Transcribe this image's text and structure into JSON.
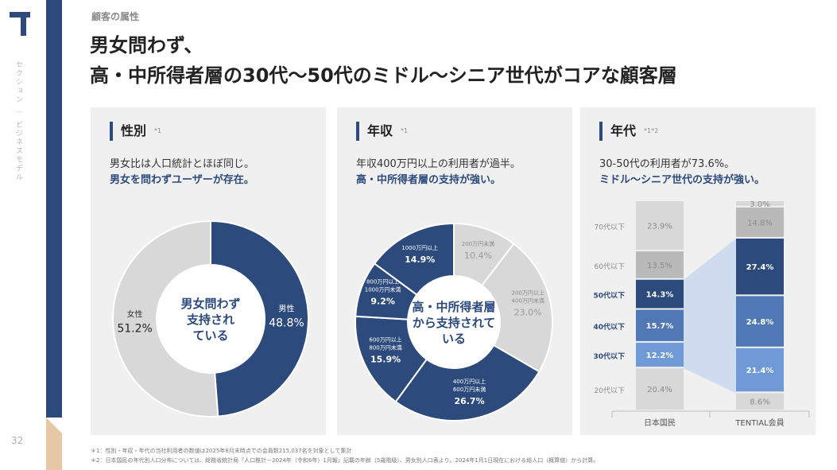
{
  "sidebar": {
    "section_label": "セクション ｜ ビジネスモデル",
    "page_number": "32"
  },
  "header": {
    "eyebrow": "顧客の属性",
    "title_line1": "男女問わず、",
    "title_line2": "高・中所得者層の30代〜50代のミドル〜シニア世代がコアな顧客層"
  },
  "colors": {
    "navy": "#2c4a7c",
    "blue": "#4f78b5",
    "light_blue": "#6f9ad6",
    "gray": "#d9d8d9",
    "mid_gray": "#b9b9b9",
    "tan": "#e6c7a6"
  },
  "panels": {
    "gender": {
      "title": "性別",
      "note": "*1",
      "line1": "男女比は人口統計とほぼ同じ。",
      "line2": "男女を問わずユーザーが存在。"
    },
    "income": {
      "title": "年収",
      "note": "*1",
      "line1": "年収400万円以上の利用者が過半。",
      "line2": "高・中所得者層の支持が強い。"
    },
    "age": {
      "title": "年代",
      "note": "*1*2",
      "line1": "30-50代の利用者が73.6%。",
      "line2": "ミドル〜シニア世代の支持が強い。"
    }
  },
  "chart_data": [
    {
      "type": "pie",
      "name": "gender",
      "center_label": [
        "男女問わず",
        "支持され",
        "ている"
      ],
      "slices": [
        {
          "label": "男性",
          "value": 48.8,
          "display": "48.8%",
          "color": "#2c4a7c"
        },
        {
          "label": "女性",
          "value": 51.2,
          "display": "51.2%",
          "color": "#d9d8d9"
        }
      ]
    },
    {
      "type": "pie",
      "name": "income",
      "center_label": [
        "高・中所得者層",
        "から支持されて",
        "いる"
      ],
      "slices": [
        {
          "label": [
            "200万円未満"
          ],
          "value": 10.4,
          "display": "10.4%",
          "color": "#d9d8d9"
        },
        {
          "label": [
            "200万円以上",
            "400万円未満"
          ],
          "value": 23.0,
          "display": "23.0%",
          "color": "#d9d8d9"
        },
        {
          "label": [
            "400万円以上",
            "600万円未満"
          ],
          "value": 26.7,
          "display": "26.7%",
          "color": "#2c4a7c"
        },
        {
          "label": [
            "600万円以上",
            "800万円未満"
          ],
          "value": 15.9,
          "display": "15.9%",
          "color": "#2c4a7c"
        },
        {
          "label": [
            "800万円以上",
            "1000万円未満"
          ],
          "value": 9.2,
          "display": "9.2%",
          "color": "#2c4a7c"
        },
        {
          "label": [
            "1000万円以上"
          ],
          "value": 14.9,
          "display": "14.9%",
          "color": "#2c4a7c"
        }
      ]
    },
    {
      "type": "bar",
      "name": "age",
      "stacked": true,
      "categories": [
        "日本国民",
        "TENTIAL会員"
      ],
      "age_groups": [
        "20代以下",
        "30代以下",
        "40代以下",
        "50代以下",
        "60代以下",
        "70代以下"
      ],
      "series": [
        {
          "name": "20代以下",
          "values": [
            20.4,
            8.6
          ],
          "display": [
            "20.4%",
            "8.6%"
          ]
        },
        {
          "name": "30代以下",
          "values": [
            12.2,
            21.4
          ],
          "display": [
            "12.2%",
            "21.4%"
          ]
        },
        {
          "name": "40代以下",
          "values": [
            15.7,
            24.8
          ],
          "display": [
            "15.7%",
            "24.8%"
          ]
        },
        {
          "name": "50代以下",
          "values": [
            14.3,
            27.4
          ],
          "display": [
            "14.3%",
            "27.4%"
          ]
        },
        {
          "name": "60代以下",
          "values": [
            13.5,
            14.8
          ],
          "display": [
            "13.5%",
            "14.8%"
          ]
        },
        {
          "name": "70代以下",
          "values": [
            23.9,
            3.0
          ],
          "display": [
            "23.9%",
            "3.0%"
          ]
        }
      ],
      "highlight": [
        "30代以下",
        "40代以下",
        "50代以下"
      ]
    }
  ],
  "footnotes": {
    "n1": "＊1：性別・年収・年代の当社利用者の数値は2025年8月末時点での会員数215,037名を対象として集計",
    "n2": "＊2：日本国民の年代別人口分布については、総務省統計局『人口推計－2024年（令和6年）1月報』記載の年齢（5歳階級）、男女別人口表より。2024年1月1日現在における総人口（概算値）から計算。"
  }
}
